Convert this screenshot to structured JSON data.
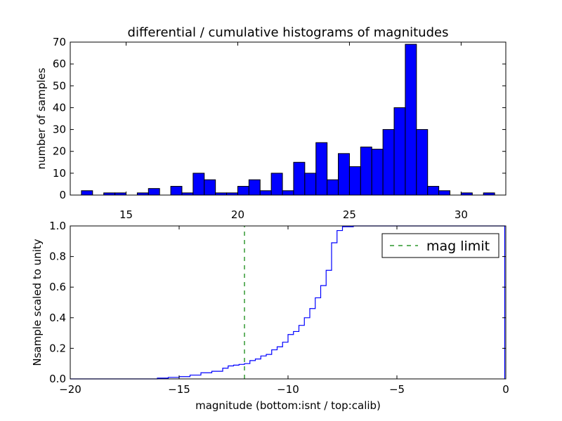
{
  "title": "differential / cumulative histograms of magnitudes",
  "chart_data": [
    {
      "type": "bar",
      "title": "differential / cumulative histograms of magnitudes",
      "xlabel": "",
      "ylabel": "number of samples",
      "xlim": [
        12.5,
        32.0
      ],
      "ylim": [
        0,
        70
      ],
      "x_ticks": [
        15,
        20,
        25,
        30
      ],
      "y_ticks": [
        0,
        10,
        20,
        30,
        40,
        50,
        60,
        70
      ],
      "x_tick_position": "top",
      "bin_width": 0.5,
      "bar_color": "#0000ff",
      "bins": [
        {
          "left": 13.0,
          "count": 2
        },
        {
          "left": 14.0,
          "count": 1
        },
        {
          "left": 14.5,
          "count": 1
        },
        {
          "left": 15.5,
          "count": 1
        },
        {
          "left": 16.0,
          "count": 3
        },
        {
          "left": 17.0,
          "count": 4
        },
        {
          "left": 17.5,
          "count": 1
        },
        {
          "left": 18.0,
          "count": 10
        },
        {
          "left": 18.5,
          "count": 7
        },
        {
          "left": 19.0,
          "count": 1
        },
        {
          "left": 19.5,
          "count": 1
        },
        {
          "left": 20.0,
          "count": 4
        },
        {
          "left": 20.5,
          "count": 7
        },
        {
          "left": 21.0,
          "count": 2
        },
        {
          "left": 21.5,
          "count": 10
        },
        {
          "left": 22.0,
          "count": 2
        },
        {
          "left": 22.5,
          "count": 15
        },
        {
          "left": 23.0,
          "count": 10
        },
        {
          "left": 23.5,
          "count": 24
        },
        {
          "left": 24.0,
          "count": 7
        },
        {
          "left": 24.5,
          "count": 19
        },
        {
          "left": 25.0,
          "count": 13
        },
        {
          "left": 25.5,
          "count": 22
        },
        {
          "left": 26.0,
          "count": 21
        },
        {
          "left": 26.5,
          "count": 30
        },
        {
          "left": 27.0,
          "count": 40
        },
        {
          "left": 27.5,
          "count": 69
        },
        {
          "left": 28.0,
          "count": 30
        },
        {
          "left": 28.5,
          "count": 4
        },
        {
          "left": 29.0,
          "count": 2
        },
        {
          "left": 30.0,
          "count": 1
        },
        {
          "left": 31.0,
          "count": 1
        }
      ]
    },
    {
      "type": "line",
      "title": "",
      "xlabel": "magnitude (bottom:isnt / top:calib)",
      "ylabel": "Nsample scaled to unity",
      "xlim": [
        -20,
        0
      ],
      "ylim": [
        0.0,
        1.0
      ],
      "x_ticks": [
        "−20",
        "−15",
        "−10",
        "−5",
        "0"
      ],
      "x_tick_values": [
        -20,
        -15,
        -10,
        -5,
        0
      ],
      "y_ticks": [
        "0.0",
        "0.2",
        "0.4",
        "0.6",
        "0.8",
        "1.0"
      ],
      "y_tick_values": [
        0.0,
        0.2,
        0.4,
        0.6,
        0.8,
        1.0
      ],
      "grid": false,
      "legend": {
        "placement": "top-right",
        "entries": [
          {
            "label": "mag limit",
            "style": "dashed",
            "color": "#008000"
          }
        ]
      },
      "series": [
        {
          "style": "steps",
          "color": "#0000ff",
          "x": [
            -20.0,
            -16.0,
            -15.5,
            -15.0,
            -14.5,
            -14.0,
            -13.5,
            -13.0,
            -12.75,
            -12.5,
            -12.25,
            -12.0,
            -11.75,
            -11.5,
            -11.25,
            -11.0,
            -10.75,
            -10.5,
            -10.25,
            -10.0,
            -9.75,
            -9.5,
            -9.25,
            -9.0,
            -8.75,
            -8.5,
            -8.25,
            -8.0,
            -7.75,
            -7.5,
            -7.0,
            -6.0,
            -0.05
          ],
          "y": [
            0.0,
            0.005,
            0.01,
            0.015,
            0.025,
            0.04,
            0.05,
            0.07,
            0.085,
            0.09,
            0.095,
            0.1,
            0.12,
            0.13,
            0.15,
            0.16,
            0.19,
            0.21,
            0.24,
            0.29,
            0.31,
            0.35,
            0.4,
            0.46,
            0.53,
            0.61,
            0.71,
            0.89,
            0.97,
            0.995,
            1.0,
            1.0,
            1.0
          ]
        },
        {
          "name": "mag limit",
          "style": "dashed",
          "color": "#008000",
          "x": [
            -12.0,
            -12.0
          ],
          "y": [
            0.0,
            1.0
          ]
        }
      ]
    }
  ]
}
